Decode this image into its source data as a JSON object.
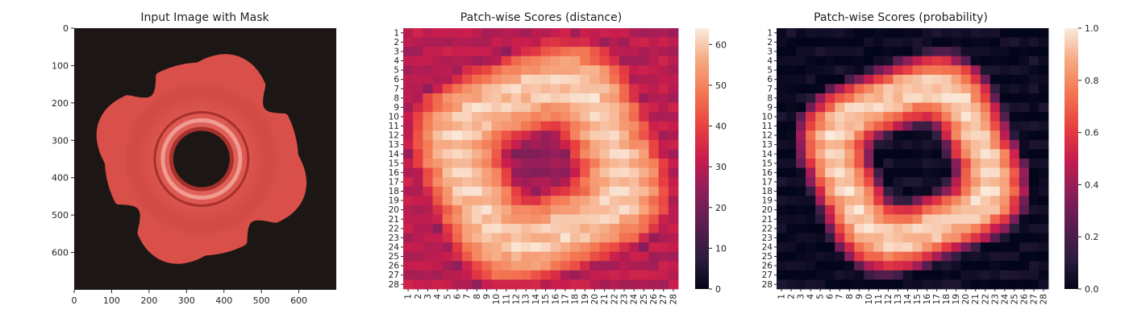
{
  "chart_data": [
    {
      "type": "image",
      "title": "Input Image with Mask",
      "x_ticks": [
        "0",
        "100",
        "200",
        "300",
        "400",
        "500",
        "600"
      ],
      "y_ticks": [
        "0",
        "100",
        "200",
        "300",
        "400",
        "500",
        "600"
      ],
      "xlim": [
        0,
        700
      ],
      "ylim": [
        0,
        700
      ],
      "colors": {
        "background": "#1c1614",
        "part": "#d9504a",
        "part_highlight": "#f09a90",
        "part_shadow": "#a8302c"
      }
    },
    {
      "type": "heatmap",
      "title": "Patch-wise Scores (distance)",
      "x_labels": [
        "1",
        "2",
        "3",
        "4",
        "5",
        "6",
        "7",
        "8",
        "9",
        "10",
        "11",
        "12",
        "13",
        "14",
        "15",
        "16",
        "17",
        "18",
        "19",
        "20",
        "21",
        "22",
        "23",
        "24",
        "25",
        "26",
        "27",
        "28"
      ],
      "y_labels": [
        "1",
        "2",
        "3",
        "4",
        "5",
        "6",
        "7",
        "8",
        "9",
        "10",
        "11",
        "12",
        "13",
        "14",
        "15",
        "16",
        "17",
        "18",
        "19",
        "20",
        "21",
        "22",
        "23",
        "24",
        "25",
        "26",
        "27",
        "28"
      ],
      "colorbar": {
        "range": [
          0,
          64
        ],
        "ticks": [
          "0",
          "10",
          "20",
          "30",
          "40",
          "50",
          "60"
        ],
        "colormap": "rocket"
      },
      "pattern": {
        "ring_center": [
          14.5,
          15
        ],
        "inner_radius": 2.8,
        "outer_radius": 13.5,
        "inner_value": 25,
        "ring_peak": 60,
        "outer_value": 30
      }
    },
    {
      "type": "heatmap",
      "title": "Patch-wise Scores (probability)",
      "x_labels": [
        "1",
        "2",
        "3",
        "4",
        "5",
        "6",
        "7",
        "8",
        "9",
        "10",
        "11",
        "12",
        "13",
        "14",
        "15",
        "16",
        "17",
        "18",
        "19",
        "20",
        "21",
        "22",
        "23",
        "24",
        "25",
        "26",
        "27",
        "28"
      ],
      "y_labels": [
        "1",
        "2",
        "3",
        "4",
        "5",
        "6",
        "7",
        "8",
        "9",
        "10",
        "11",
        "12",
        "13",
        "14",
        "15",
        "16",
        "17",
        "18",
        "19",
        "20",
        "21",
        "22",
        "23",
        "24",
        "25",
        "26",
        "27",
        "28"
      ],
      "colorbar": {
        "range": [
          0,
          1
        ],
        "ticks": [
          "0.0",
          "0.2",
          "0.4",
          "0.6",
          "0.8",
          "1.0"
        ],
        "colormap": "rocket"
      },
      "pattern": {
        "ring_center": [
          14.5,
          15
        ],
        "inner_radius": 3.6,
        "outer_radius": 12.0,
        "inner_value": 0.03,
        "ring_peak": 0.95,
        "outer_value": 0.02
      }
    }
  ]
}
